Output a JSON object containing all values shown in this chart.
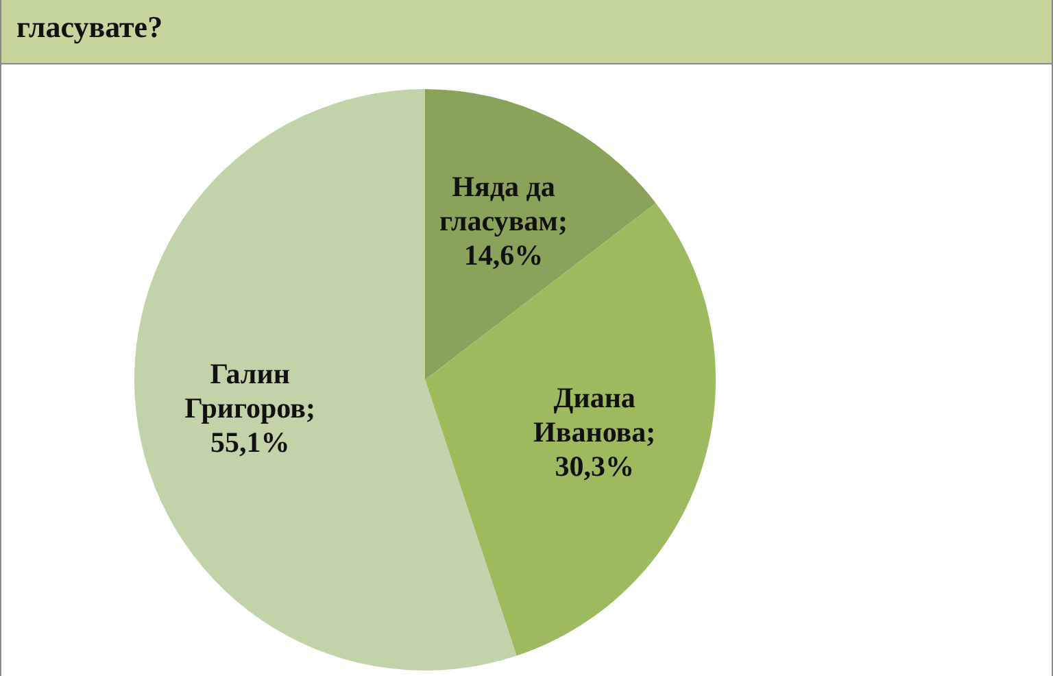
{
  "chart_data": {
    "type": "pie",
    "title": "гласувате?",
    "categories": [
      "Няда да гласувам",
      "Диана Иванова",
      "Галин Григоров"
    ],
    "values": [
      14.6,
      30.3,
      55.1
    ],
    "value_labels": [
      ";\n14,6%",
      ";\n30,3%",
      ";\n55,1%"
    ],
    "colors": [
      "#8aa35a",
      "#9dbb5e",
      "#c3d3a9"
    ]
  }
}
